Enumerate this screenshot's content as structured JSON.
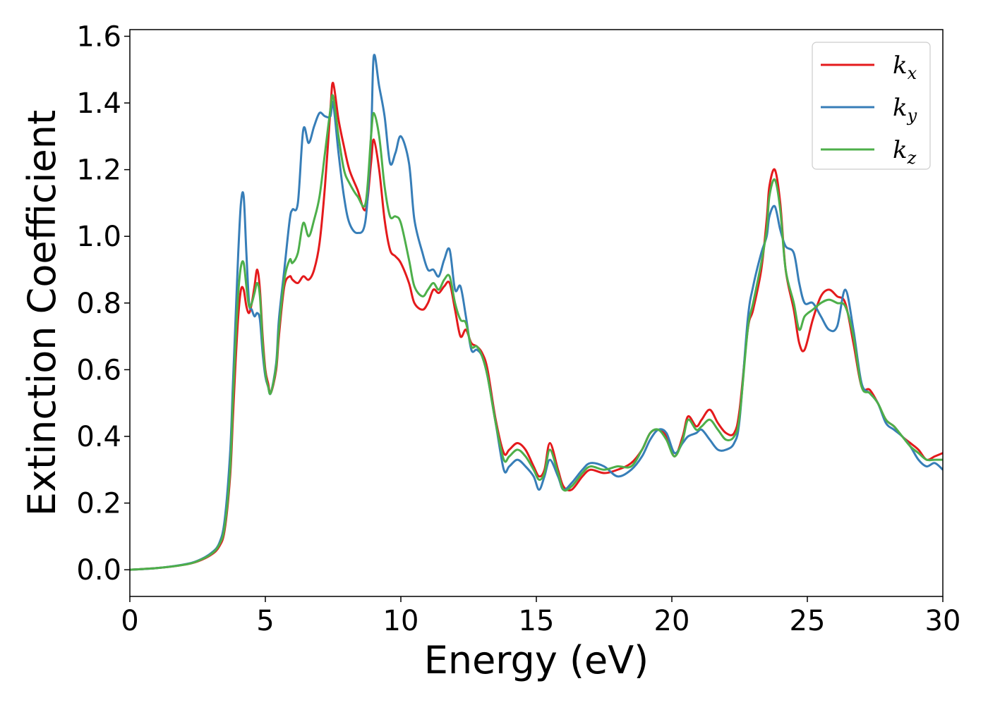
{
  "chart_data": {
    "type": "line",
    "title": "",
    "xlabel": "Energy (eV)",
    "ylabel": "Extinction Coefficient",
    "xlim": [
      0,
      30
    ],
    "ylim": [
      -0.08,
      1.62
    ],
    "xticks": [
      0,
      5,
      10,
      15,
      20,
      25,
      30
    ],
    "xtick_labels": [
      "0",
      "5",
      "10",
      "15",
      "20",
      "25",
      "30"
    ],
    "yticks": [
      0.0,
      0.2,
      0.4,
      0.6,
      0.8,
      1.0,
      1.2,
      1.4,
      1.6
    ],
    "ytick_labels": [
      "0.0",
      "0.2",
      "0.4",
      "0.6",
      "0.8",
      "1.0",
      "1.2",
      "1.4",
      "1.6"
    ],
    "grid": false,
    "legend": {
      "placement": "top-right"
    },
    "series": [
      {
        "name": "k",
        "subscript": "x",
        "color": "#e41a1c",
        "x": [
          0,
          1,
          2,
          2.5,
          3,
          3.3,
          3.5,
          3.7,
          3.8,
          3.9,
          4.0,
          4.1,
          4.2,
          4.3,
          4.4,
          4.5,
          4.6,
          4.7,
          4.8,
          4.9,
          5.0,
          5.1,
          5.2,
          5.4,
          5.5,
          5.7,
          5.9,
          6.0,
          6.2,
          6.4,
          6.6,
          6.8,
          7.0,
          7.2,
          7.4,
          7.5,
          7.7,
          7.9,
          8.1,
          8.4,
          8.7,
          8.9,
          9.0,
          9.2,
          9.4,
          9.6,
          9.8,
          10.0,
          10.3,
          10.5,
          10.8,
          11.0,
          11.2,
          11.4,
          11.6,
          11.8,
          12.0,
          12.2,
          12.4,
          12.6,
          12.8,
          13.0,
          13.2,
          13.5,
          13.8,
          14.0,
          14.3,
          14.6,
          14.9,
          15.1,
          15.3,
          15.5,
          15.8,
          16.0,
          16.3,
          16.7,
          17.0,
          17.5,
          18.0,
          18.5,
          18.9,
          19.2,
          19.5,
          19.8,
          20.1,
          20.4,
          20.6,
          20.9,
          21.1,
          21.4,
          21.7,
          22.0,
          22.3,
          22.5,
          22.8,
          23.0,
          23.3,
          23.5,
          23.6,
          23.8,
          24.0,
          24.2,
          24.5,
          24.7,
          24.9,
          25.2,
          25.5,
          25.8,
          26.1,
          26.4,
          26.7,
          27.0,
          27.3,
          27.6,
          27.9,
          28.2,
          28.5,
          28.8,
          29.1,
          29.4,
          29.7,
          30.0
        ],
        "y": [
          0.0,
          0.005,
          0.015,
          0.025,
          0.045,
          0.07,
          0.12,
          0.28,
          0.45,
          0.62,
          0.76,
          0.84,
          0.84,
          0.79,
          0.77,
          0.8,
          0.85,
          0.9,
          0.84,
          0.7,
          0.6,
          0.56,
          0.53,
          0.6,
          0.7,
          0.85,
          0.88,
          0.87,
          0.86,
          0.88,
          0.87,
          0.9,
          0.98,
          1.15,
          1.38,
          1.46,
          1.35,
          1.27,
          1.2,
          1.14,
          1.08,
          1.22,
          1.29,
          1.2,
          1.05,
          0.96,
          0.94,
          0.92,
          0.86,
          0.8,
          0.78,
          0.8,
          0.84,
          0.83,
          0.85,
          0.86,
          0.78,
          0.7,
          0.72,
          0.68,
          0.67,
          0.65,
          0.6,
          0.45,
          0.35,
          0.36,
          0.38,
          0.36,
          0.31,
          0.28,
          0.3,
          0.38,
          0.3,
          0.25,
          0.24,
          0.28,
          0.3,
          0.29,
          0.3,
          0.32,
          0.36,
          0.41,
          0.42,
          0.4,
          0.34,
          0.4,
          0.46,
          0.43,
          0.45,
          0.48,
          0.44,
          0.41,
          0.41,
          0.48,
          0.72,
          0.78,
          0.9,
          1.05,
          1.15,
          1.2,
          1.1,
          0.9,
          0.78,
          0.68,
          0.66,
          0.75,
          0.82,
          0.84,
          0.82,
          0.8,
          0.68,
          0.55,
          0.54,
          0.5,
          0.45,
          0.43,
          0.4,
          0.38,
          0.36,
          0.33,
          0.34,
          0.35
        ]
      },
      {
        "name": "k",
        "subscript": "y",
        "color": "#377eb8",
        "x": [
          0,
          1,
          2,
          2.5,
          3,
          3.3,
          3.5,
          3.7,
          3.8,
          3.9,
          4.0,
          4.1,
          4.2,
          4.3,
          4.4,
          4.5,
          4.6,
          4.7,
          4.8,
          4.9,
          5.0,
          5.1,
          5.2,
          5.4,
          5.5,
          5.7,
          5.9,
          6.0,
          6.2,
          6.4,
          6.6,
          6.8,
          7.0,
          7.2,
          7.4,
          7.5,
          7.7,
          7.9,
          8.1,
          8.4,
          8.7,
          8.9,
          9.0,
          9.2,
          9.4,
          9.6,
          9.8,
          10.0,
          10.3,
          10.5,
          10.8,
          11.0,
          11.2,
          11.4,
          11.6,
          11.8,
          12.0,
          12.2,
          12.4,
          12.6,
          12.8,
          13.0,
          13.2,
          13.5,
          13.8,
          14.0,
          14.3,
          14.6,
          14.9,
          15.1,
          15.3,
          15.5,
          15.8,
          16.0,
          16.3,
          16.7,
          17.0,
          17.5,
          18.0,
          18.5,
          18.9,
          19.2,
          19.5,
          19.8,
          20.1,
          20.4,
          20.6,
          20.9,
          21.1,
          21.4,
          21.7,
          22.0,
          22.3,
          22.5,
          22.8,
          23.0,
          23.3,
          23.5,
          23.6,
          23.8,
          24.0,
          24.2,
          24.5,
          24.7,
          24.9,
          25.2,
          25.5,
          25.8,
          26.1,
          26.4,
          26.7,
          27.0,
          27.3,
          27.6,
          27.9,
          28.2,
          28.5,
          28.8,
          29.1,
          29.4,
          29.7,
          30.0
        ],
        "y": [
          0.0,
          0.005,
          0.016,
          0.027,
          0.05,
          0.08,
          0.15,
          0.35,
          0.55,
          0.75,
          0.95,
          1.1,
          1.12,
          0.95,
          0.8,
          0.78,
          0.76,
          0.77,
          0.75,
          0.65,
          0.58,
          0.55,
          0.53,
          0.62,
          0.75,
          0.9,
          1.05,
          1.08,
          1.1,
          1.32,
          1.28,
          1.33,
          1.37,
          1.36,
          1.36,
          1.4,
          1.25,
          1.12,
          1.04,
          1.01,
          1.05,
          1.3,
          1.54,
          1.45,
          1.36,
          1.22,
          1.25,
          1.3,
          1.22,
          1.05,
          0.95,
          0.9,
          0.9,
          0.88,
          0.93,
          0.96,
          0.84,
          0.85,
          0.76,
          0.66,
          0.66,
          0.64,
          0.58,
          0.44,
          0.3,
          0.31,
          0.33,
          0.31,
          0.28,
          0.24,
          0.28,
          0.33,
          0.28,
          0.24,
          0.26,
          0.3,
          0.32,
          0.31,
          0.28,
          0.3,
          0.34,
          0.39,
          0.42,
          0.41,
          0.35,
          0.38,
          0.4,
          0.41,
          0.42,
          0.39,
          0.36,
          0.36,
          0.38,
          0.45,
          0.75,
          0.85,
          0.95,
          1.0,
          1.06,
          1.09,
          1.02,
          0.97,
          0.95,
          0.86,
          0.8,
          0.8,
          0.76,
          0.72,
          0.73,
          0.84,
          0.72,
          0.56,
          0.53,
          0.5,
          0.44,
          0.42,
          0.4,
          0.37,
          0.33,
          0.31,
          0.32,
          0.3
        ]
      },
      {
        "name": "k",
        "subscript": "z",
        "color": "#4daf4a",
        "x": [
          0,
          1,
          2,
          2.5,
          3,
          3.3,
          3.5,
          3.7,
          3.8,
          3.9,
          4.0,
          4.1,
          4.2,
          4.3,
          4.4,
          4.5,
          4.6,
          4.7,
          4.8,
          4.9,
          5.0,
          5.1,
          5.2,
          5.4,
          5.5,
          5.7,
          5.9,
          6.0,
          6.2,
          6.4,
          6.6,
          6.8,
          7.0,
          7.2,
          7.4,
          7.5,
          7.7,
          7.9,
          8.1,
          8.4,
          8.7,
          8.9,
          9.0,
          9.2,
          9.4,
          9.6,
          9.8,
          10.0,
          10.3,
          10.5,
          10.8,
          11.0,
          11.2,
          11.4,
          11.6,
          11.8,
          12.0,
          12.2,
          12.4,
          12.6,
          12.8,
          13.0,
          13.2,
          13.5,
          13.8,
          14.0,
          14.3,
          14.6,
          14.9,
          15.1,
          15.3,
          15.5,
          15.8,
          16.0,
          16.3,
          16.7,
          17.0,
          17.5,
          18.0,
          18.5,
          18.9,
          19.2,
          19.5,
          19.8,
          20.1,
          20.4,
          20.6,
          20.9,
          21.1,
          21.4,
          21.7,
          22.0,
          22.3,
          22.5,
          22.8,
          23.0,
          23.3,
          23.5,
          23.6,
          23.8,
          24.0,
          24.2,
          24.5,
          24.7,
          24.9,
          25.2,
          25.5,
          25.8,
          26.1,
          26.4,
          26.7,
          27.0,
          27.3,
          27.6,
          27.9,
          28.2,
          28.5,
          28.8,
          29.1,
          29.4,
          29.7,
          30.0
        ],
        "y": [
          0.0,
          0.005,
          0.015,
          0.026,
          0.047,
          0.075,
          0.13,
          0.3,
          0.5,
          0.68,
          0.83,
          0.91,
          0.92,
          0.85,
          0.79,
          0.8,
          0.83,
          0.86,
          0.82,
          0.68,
          0.59,
          0.55,
          0.53,
          0.61,
          0.72,
          0.87,
          0.93,
          0.92,
          0.95,
          1.04,
          1.0,
          1.05,
          1.12,
          1.25,
          1.38,
          1.42,
          1.3,
          1.2,
          1.16,
          1.12,
          1.1,
          1.3,
          1.37,
          1.3,
          1.15,
          1.06,
          1.06,
          1.04,
          0.93,
          0.85,
          0.82,
          0.84,
          0.86,
          0.84,
          0.87,
          0.88,
          0.8,
          0.75,
          0.74,
          0.67,
          0.67,
          0.64,
          0.58,
          0.44,
          0.33,
          0.34,
          0.36,
          0.34,
          0.3,
          0.27,
          0.29,
          0.36,
          0.29,
          0.24,
          0.25,
          0.29,
          0.31,
          0.3,
          0.31,
          0.31,
          0.36,
          0.41,
          0.42,
          0.39,
          0.34,
          0.39,
          0.45,
          0.42,
          0.43,
          0.45,
          0.42,
          0.39,
          0.4,
          0.46,
          0.72,
          0.8,
          0.92,
          1.02,
          1.12,
          1.17,
          1.08,
          0.9,
          0.8,
          0.72,
          0.76,
          0.78,
          0.8,
          0.81,
          0.8,
          0.79,
          0.7,
          0.55,
          0.53,
          0.5,
          0.45,
          0.43,
          0.4,
          0.37,
          0.35,
          0.33,
          0.33,
          0.33
        ]
      }
    ]
  }
}
